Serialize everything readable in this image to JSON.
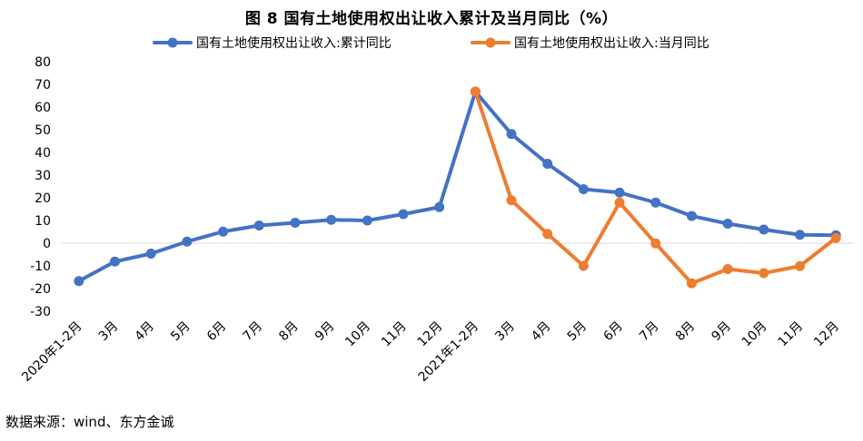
{
  "title": "图 8  国有土地使用权出让收入累计及当月同比（%）",
  "source": "数据来源：wind、东方金诚",
  "chart_data": {
    "type": "line",
    "categories": [
      "2020年1-2月",
      "3月",
      "4月",
      "5月",
      "6月",
      "7月",
      "8月",
      "9月",
      "10月",
      "11月",
      "12月",
      "2021年1-2月",
      "3月",
      "4月",
      "5月",
      "6月",
      "7月",
      "8月",
      "9月",
      "10月",
      "11月",
      "12月"
    ],
    "ylim": [
      -30,
      80
    ],
    "yticks": [
      80,
      70,
      60,
      50,
      40,
      30,
      20,
      10,
      0,
      -10,
      -20,
      -30
    ],
    "legend_position": "top",
    "series": [
      {
        "name": "国有土地使用权出让收入:累计同比",
        "color": "#4472C4",
        "values": [
          -16.7,
          -8.1,
          -4.6,
          0.7,
          5.1,
          7.8,
          9.0,
          10.3,
          10.0,
          12.8,
          15.9,
          66.8,
          48.1,
          35.0,
          23.8,
          22.3,
          17.9,
          12.0,
          8.6,
          6.0,
          3.7,
          3.5
        ]
      },
      {
        "name": "国有土地使用权出让收入:当月同比",
        "color": "#ED7D31",
        "values": [
          null,
          null,
          null,
          null,
          null,
          null,
          null,
          null,
          null,
          null,
          null,
          66.8,
          18.9,
          4.1,
          -10.0,
          17.9,
          -0.1,
          -17.7,
          -11.4,
          -13.2,
          -10.1,
          2.3
        ]
      }
    ]
  }
}
